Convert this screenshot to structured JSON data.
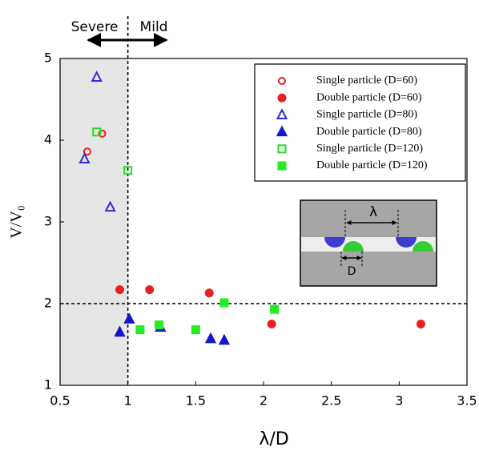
{
  "chart_data": {
    "type": "scatter",
    "xlabel": "λ/D",
    "ylabel": "V/V₀",
    "xlim": [
      0.5,
      3.5
    ],
    "ylim": [
      1,
      5
    ],
    "xticks": [
      0.5,
      1,
      1.5,
      2,
      2.5,
      3,
      3.5
    ],
    "yticks": [
      1,
      2,
      3,
      4,
      5
    ],
    "legend": "upper right",
    "shaded_x": [
      0.5,
      1
    ],
    "vlines": [
      1
    ],
    "hlines": [
      2
    ],
    "annotations": [
      "Severe",
      "Mild"
    ],
    "inset_labels": [
      "λ",
      "D"
    ],
    "series": [
      {
        "name": "Single particle (D=60)",
        "color": "#e8201f",
        "marker": "circle",
        "filled": false,
        "x": [
          0.7,
          0.81
        ],
        "values": [
          3.86,
          4.08
        ]
      },
      {
        "name": "Double particle (D=60)",
        "color": "#e8201f",
        "marker": "circle",
        "filled": true,
        "x": [
          0.94,
          1.16,
          1.6,
          2.06,
          3.16
        ],
        "values": [
          2.17,
          2.17,
          2.13,
          1.75,
          1.75
        ]
      },
      {
        "name": "Single particle (D=80)",
        "color": "#2b2bd9",
        "marker": "triangle",
        "filled": false,
        "x": [
          0.77,
          0.68,
          0.87
        ],
        "values": [
          4.77,
          3.77,
          3.18
        ]
      },
      {
        "name": "Double particle (D=80)",
        "color": "#1515d0",
        "marker": "triangle",
        "filled": true,
        "x": [
          0.94,
          1.01,
          1.24,
          1.61,
          1.71
        ],
        "values": [
          1.65,
          1.81,
          1.71,
          1.57,
          1.55
        ]
      },
      {
        "name": "Single particle (D=120)",
        "color": "#22dd22",
        "marker": "square",
        "filled": false,
        "x": [
          0.77,
          1.0
        ],
        "values": [
          4.1,
          3.63
        ]
      },
      {
        "name": "Double particle (D=120)",
        "color": "#22ee22",
        "marker": "square",
        "filled": true,
        "x": [
          1.09,
          1.23,
          1.5,
          1.71,
          2.08
        ],
        "values": [
          1.68,
          1.74,
          1.68,
          2.01,
          1.93
        ]
      }
    ]
  }
}
